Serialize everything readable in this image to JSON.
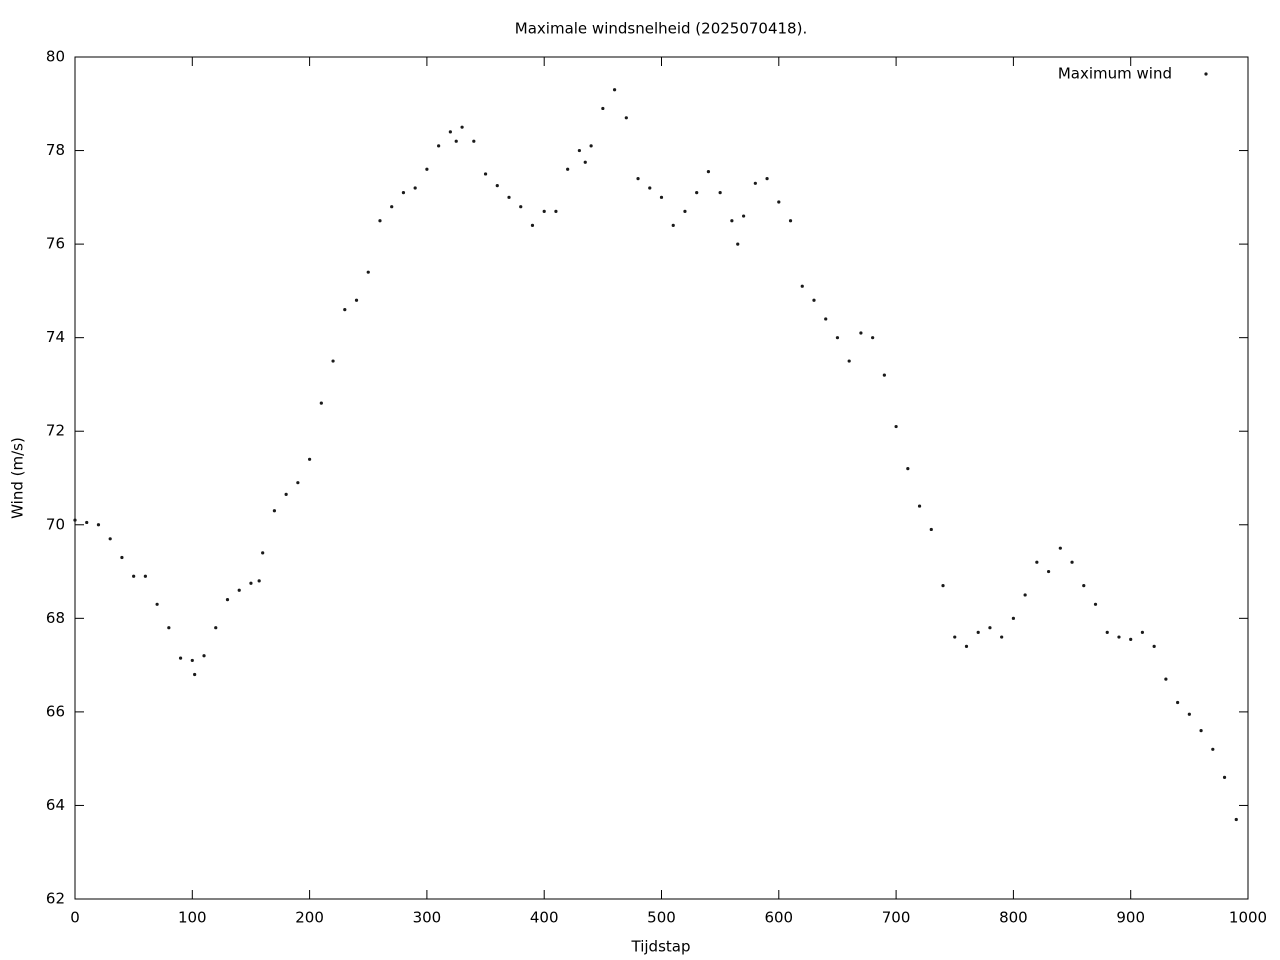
{
  "chart_data": {
    "type": "scatter",
    "title": "Maximale windsnelheid (2025070418).",
    "x_label": "Tijdstap",
    "y_label": "Wind (m/s)",
    "legend_position": "top-right",
    "series": [
      {
        "name": "Maximum wind",
        "color": "#1a1a1a",
        "x": [
          0,
          10,
          20,
          30,
          40,
          50,
          60,
          70,
          80,
          90,
          100,
          102,
          110,
          120,
          130,
          140,
          150,
          157,
          160,
          170,
          180,
          190,
          200,
          210,
          220,
          230,
          240,
          250,
          260,
          270,
          280,
          290,
          300,
          310,
          320,
          325,
          330,
          340,
          350,
          360,
          370,
          380,
          390,
          400,
          410,
          420,
          430,
          435,
          440,
          450,
          460,
          470,
          480,
          490,
          500,
          510,
          520,
          530,
          540,
          550,
          560,
          565,
          570,
          580,
          590,
          600,
          610,
          620,
          630,
          640,
          650,
          660,
          670,
          680,
          690,
          700,
          710,
          720,
          730,
          740,
          750,
          760,
          770,
          780,
          790,
          800,
          810,
          820,
          830,
          840,
          850,
          860,
          870,
          880,
          890,
          900,
          910,
          920,
          930,
          940,
          950,
          960,
          970,
          980,
          990
        ],
        "values": [
          70.1,
          70.05,
          70.0,
          69.7,
          69.3,
          68.9,
          68.9,
          68.3,
          67.8,
          67.15,
          67.1,
          66.8,
          67.2,
          67.8,
          68.4,
          68.6,
          68.75,
          68.8,
          69.4,
          70.3,
          70.65,
          70.9,
          71.4,
          72.6,
          73.5,
          74.6,
          74.8,
          75.4,
          76.5,
          76.8,
          77.1,
          77.2,
          77.6,
          78.1,
          78.4,
          78.2,
          78.5,
          78.2,
          77.5,
          77.25,
          77.0,
          76.8,
          76.4,
          76.7,
          76.7,
          77.6,
          78.0,
          77.75,
          78.1,
          78.9,
          79.3,
          78.7,
          77.4,
          77.2,
          77.0,
          76.4,
          76.7,
          77.1,
          77.55,
          77.1,
          76.5,
          76.0,
          76.6,
          77.3,
          77.4,
          76.9,
          76.5,
          75.1,
          74.8,
          74.4,
          74.0,
          73.5,
          74.1,
          74.0,
          73.2,
          72.1,
          71.2,
          70.4,
          69.9,
          68.7,
          67.6,
          67.4,
          67.7,
          67.8,
          67.6,
          68.0,
          68.5,
          69.2,
          69.0,
          69.5,
          69.2,
          68.7,
          68.3,
          67.7,
          67.6,
          67.55,
          67.7,
          67.4,
          66.7,
          66.2,
          65.95,
          65.6,
          65.2,
          64.6,
          63.7
        ]
      }
    ],
    "xlim": [
      0,
      1000
    ],
    "xticks": [
      0,
      100,
      200,
      300,
      400,
      500,
      600,
      700,
      800,
      900,
      1000
    ],
    "ylim": [
      62,
      80
    ],
    "yticks": [
      62,
      64,
      66,
      68,
      70,
      72,
      74,
      76,
      78,
      80
    ]
  }
}
